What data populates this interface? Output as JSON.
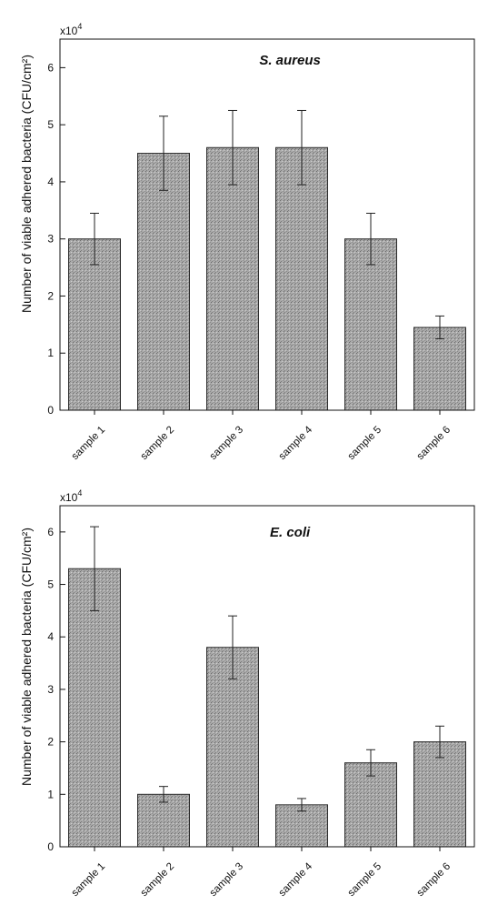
{
  "colors": {
    "bar_fill": "#a9a9a9",
    "bar_stroke": "#2b2b2b",
    "axis": "#111111"
  },
  "chart_data": [
    {
      "type": "bar",
      "title": "S. aureus",
      "ylabel": "Number of viable adhered bacteria (CFU/cm²)",
      "ymultiplier": "x10",
      "ymultiplier_exp": "4",
      "ylim": [
        0,
        6.5
      ],
      "yticks": [
        0,
        1,
        2,
        3,
        4,
        5,
        6
      ],
      "categories": [
        "sample 1",
        "sample 2",
        "sample 3",
        "sample 4",
        "sample 5",
        "sample 6"
      ],
      "values": [
        3.0,
        4.5,
        4.6,
        4.6,
        3.0,
        1.45
      ],
      "errors": [
        0.45,
        0.65,
        0.65,
        0.65,
        0.45,
        0.2
      ]
    },
    {
      "type": "bar",
      "title": "E. coli",
      "ylabel": "Number of viable adhered bacteria (CFU/cm²)",
      "ymultiplier": "x10",
      "ymultiplier_exp": "4",
      "ylim": [
        0,
        6.5
      ],
      "yticks": [
        0,
        1,
        2,
        3,
        4,
        5,
        6
      ],
      "categories": [
        "sample 1",
        "sample 2",
        "sample 3",
        "sample 4",
        "sample 5",
        "sample 6"
      ],
      "values": [
        5.3,
        1.0,
        3.8,
        0.8,
        1.6,
        2.0
      ],
      "errors": [
        0.8,
        0.15,
        0.6,
        0.12,
        0.25,
        0.3
      ]
    }
  ]
}
